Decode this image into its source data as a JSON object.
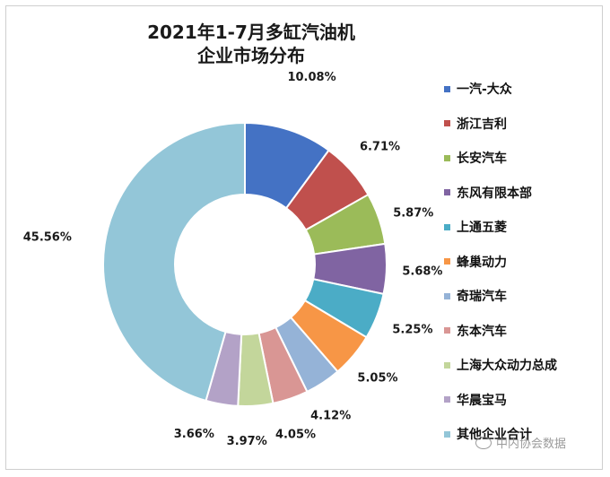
{
  "chart_data": {
    "type": "pie",
    "title": "2021年1-7月多缸汽油机",
    "subtitle": "企业市场分布",
    "labels": [
      "一汽-大众",
      "浙江吉利",
      "长安汽车",
      "东风有限本部",
      "上通五菱",
      "蜂巢动力",
      "奇瑞汽车",
      "东本汽车",
      "上海大众动力总成",
      "华晨宝马",
      "其他企业合计"
    ],
    "values": [
      10.08,
      6.71,
      5.87,
      5.68,
      5.25,
      5.05,
      4.12,
      4.05,
      3.97,
      3.66,
      45.56
    ],
    "value_labels": [
      "10.08%",
      "6.71%",
      "5.87%",
      "5.68%",
      "5.25%",
      "5.05%",
      "4.12%",
      "4.05%",
      "3.97%",
      "3.66%",
      "45.56%"
    ],
    "colors": [
      "#4472C4",
      "#C0504D",
      "#9BBB59",
      "#8064A2",
      "#4BACC6",
      "#F79646",
      "#95B3D7",
      "#D99694",
      "#C3D69B",
      "#B3A2C7",
      "#93C6D8"
    ],
    "legend_position": "right",
    "donut": true
  },
  "watermark": {
    "text": "中内协会数据"
  }
}
